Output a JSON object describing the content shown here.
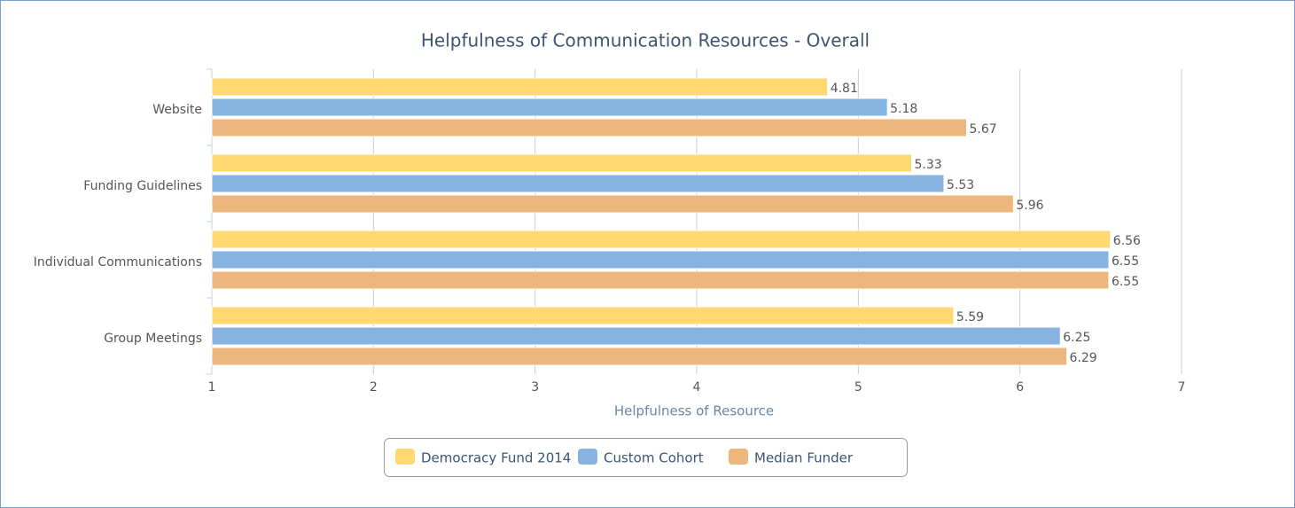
{
  "chart_data": {
    "type": "hbar",
    "title": "Helpfulness of Communication Resources - Overall",
    "x_label": "Helpfulness of Resource",
    "categories": [
      "Website",
      "Funding Guidelines",
      "Individual Communications",
      "Group Meetings"
    ],
    "series": [
      {
        "name": "Democracy Fund 2014",
        "color": "#ffd872",
        "values": [
          4.81,
          5.33,
          6.56,
          5.59
        ]
      },
      {
        "name": "Custom Cohort",
        "color": "#86b3df",
        "values": [
          5.18,
          5.53,
          6.55,
          6.25
        ]
      },
      {
        "name": "Median Funder",
        "color": "#edb67c",
        "values": [
          5.67,
          5.96,
          6.55,
          6.29
        ]
      }
    ],
    "xlim": [
      1,
      7
    ],
    "xticks": [
      1,
      2,
      3,
      4,
      5,
      6,
      7
    ],
    "grid": true,
    "legend": "bottom"
  }
}
